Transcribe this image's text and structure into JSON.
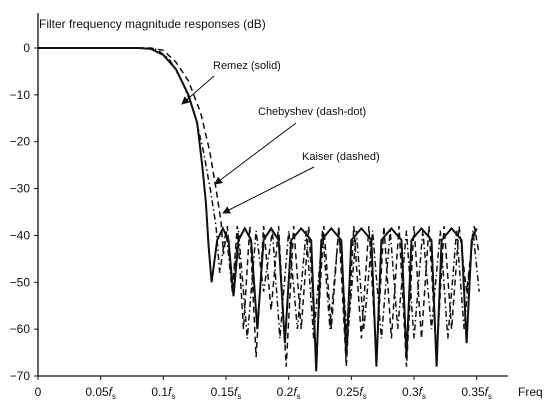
{
  "chart_data": {
    "type": "line",
    "title": "Filter frequency magnitude responses  (dB)",
    "xlabel": "Freq",
    "xlim": [
      0,
      0.375
    ],
    "ylim": [
      -70,
      5
    ],
    "x_ticks": [
      0,
      0.05,
      0.1,
      0.15,
      0.2,
      0.25,
      0.3,
      0.35
    ],
    "x_tick_labels": [
      "0",
      "0.05",
      "0.1",
      "0.15",
      "0.2",
      "0.25",
      "0.3",
      "0.35"
    ],
    "x_tick_unit": "f",
    "x_tick_unit_sub": "s",
    "y_ticks": [
      0,
      -10,
      -20,
      -30,
      -40,
      -50,
      -60,
      -70
    ],
    "y_tick_labels": [
      "0",
      "−10",
      "−20",
      "−30",
      "−40",
      "−50",
      "−60",
      "−70"
    ],
    "series": [
      {
        "name": "Remez (solid)",
        "style": "solid",
        "points": [
          [
            0,
            0
          ],
          [
            0.08,
            0
          ],
          [
            0.09,
            -0.2
          ],
          [
            0.1,
            -1.5
          ],
          [
            0.11,
            -4.5
          ],
          [
            0.12,
            -10
          ],
          [
            0.127,
            -16
          ],
          [
            0.131,
            -25
          ],
          [
            0.134,
            -33
          ],
          [
            0.136,
            -42
          ],
          [
            0.1385,
            -50
          ],
          [
            0.143,
            -41
          ],
          [
            0.1475,
            -38.5
          ],
          [
            0.152,
            -41
          ],
          [
            0.156,
            -53
          ],
          [
            0.16,
            -41
          ],
          [
            0.165,
            -38.5
          ],
          [
            0.17,
            -41
          ],
          [
            0.175,
            -60
          ],
          [
            0.18,
            -41
          ],
          [
            0.186,
            -38.5
          ],
          [
            0.192,
            -41
          ],
          [
            0.197,
            -63
          ],
          [
            0.202,
            -41
          ],
          [
            0.21,
            -38.5
          ],
          [
            0.218,
            -41
          ],
          [
            0.222,
            -69
          ],
          [
            0.226,
            -41
          ],
          [
            0.234,
            -38.5
          ],
          [
            0.242,
            -41
          ],
          [
            0.246,
            -66
          ],
          [
            0.25,
            -41
          ],
          [
            0.258,
            -38.5
          ],
          [
            0.266,
            -41
          ],
          [
            0.27,
            -68
          ],
          [
            0.274,
            -41
          ],
          [
            0.282,
            -38.5
          ],
          [
            0.29,
            -41
          ],
          [
            0.294,
            -66
          ],
          [
            0.298,
            -41
          ],
          [
            0.306,
            -38.5
          ],
          [
            0.314,
            -41
          ],
          [
            0.318,
            -68
          ],
          [
            0.322,
            -41
          ],
          [
            0.33,
            -38.5
          ],
          [
            0.338,
            -41
          ],
          [
            0.342,
            -63
          ],
          [
            0.346,
            -41
          ],
          [
            0.35,
            -38.5
          ]
        ]
      },
      {
        "name": "Chebyshev (dash-dot)",
        "style": "dash-dot",
        "points": [
          [
            0,
            0
          ],
          [
            0.085,
            0
          ],
          [
            0.095,
            -0.3
          ],
          [
            0.105,
            -2.5
          ],
          [
            0.115,
            -7
          ],
          [
            0.125,
            -14
          ],
          [
            0.132,
            -22
          ],
          [
            0.138,
            -31
          ],
          [
            0.142,
            -38
          ],
          [
            0.145,
            -48
          ],
          [
            0.15,
            -39
          ],
          [
            0.155,
            -52
          ],
          [
            0.16,
            -39
          ],
          [
            0.167,
            -62
          ],
          [
            0.174,
            -39
          ],
          [
            0.18,
            -52
          ],
          [
            0.187,
            -39
          ],
          [
            0.193,
            -62
          ],
          [
            0.2,
            -39
          ],
          [
            0.207,
            -60
          ],
          [
            0.214,
            -39
          ],
          [
            0.22,
            -62
          ],
          [
            0.227,
            -39
          ],
          [
            0.233,
            -60
          ],
          [
            0.24,
            -39
          ],
          [
            0.247,
            -62
          ],
          [
            0.254,
            -39
          ],
          [
            0.26,
            -60
          ],
          [
            0.267,
            -39
          ],
          [
            0.274,
            -62
          ],
          [
            0.281,
            -39
          ],
          [
            0.287,
            -60
          ],
          [
            0.294,
            -39
          ],
          [
            0.3,
            -62
          ],
          [
            0.307,
            -39
          ],
          [
            0.314,
            -60
          ],
          [
            0.321,
            -39
          ],
          [
            0.327,
            -62
          ],
          [
            0.334,
            -39
          ],
          [
            0.34,
            -60
          ],
          [
            0.347,
            -39
          ],
          [
            0.352,
            -52
          ]
        ]
      },
      {
        "name": "Kaiser (dashed)",
        "style": "dashed",
        "points": [
          [
            0,
            0
          ],
          [
            0.09,
            0
          ],
          [
            0.1,
            -0.5
          ],
          [
            0.11,
            -3
          ],
          [
            0.12,
            -7
          ],
          [
            0.13,
            -14
          ],
          [
            0.137,
            -22
          ],
          [
            0.142,
            -30
          ],
          [
            0.146,
            -37
          ],
          [
            0.148,
            -44
          ],
          [
            0.151,
            -38
          ],
          [
            0.155,
            -52
          ],
          [
            0.159,
            -38
          ],
          [
            0.164,
            -60
          ],
          [
            0.169,
            -38
          ],
          [
            0.174,
            -66
          ],
          [
            0.18,
            -38
          ],
          [
            0.186,
            -56
          ],
          [
            0.192,
            -38
          ],
          [
            0.198,
            -68
          ],
          [
            0.204,
            -38
          ],
          [
            0.21,
            -60
          ],
          [
            0.216,
            -38
          ],
          [
            0.222,
            -66
          ],
          [
            0.228,
            -38
          ],
          [
            0.234,
            -60
          ],
          [
            0.24,
            -38
          ],
          [
            0.246,
            -68
          ],
          [
            0.252,
            -38
          ],
          [
            0.258,
            -62
          ],
          [
            0.264,
            -38
          ],
          [
            0.27,
            -66
          ],
          [
            0.276,
            -38
          ],
          [
            0.282,
            -62
          ],
          [
            0.288,
            -38
          ],
          [
            0.294,
            -68
          ],
          [
            0.3,
            -38
          ],
          [
            0.306,
            -62
          ],
          [
            0.312,
            -38
          ],
          [
            0.318,
            -66
          ],
          [
            0.324,
            -38
          ],
          [
            0.33,
            -60
          ],
          [
            0.336,
            -38
          ],
          [
            0.342,
            -52
          ],
          [
            0.348,
            -38
          ],
          [
            0.352,
            -44
          ]
        ]
      }
    ],
    "annotations": [
      {
        "text": "Remez (solid)",
        "series": 0
      },
      {
        "text": "Chebyshev (dash-dot)",
        "series": 1
      },
      {
        "text": "Kaiser (dashed)",
        "series": 2
      }
    ]
  }
}
